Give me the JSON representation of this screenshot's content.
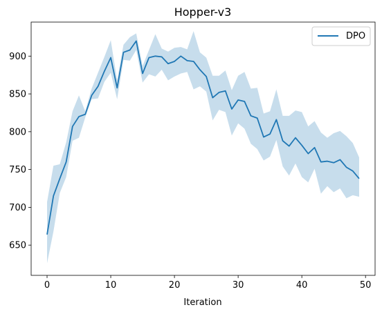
{
  "chart_data": {
    "type": "line",
    "title": "Hopper-v3",
    "xlabel": "Iteration",
    "ylabel": "",
    "xlim": [
      -2.5,
      51.5
    ],
    "ylim": [
      610,
      945
    ],
    "xticks": [
      0,
      10,
      20,
      30,
      40,
      50
    ],
    "yticks": [
      650,
      700,
      750,
      800,
      850,
      900
    ],
    "grid": false,
    "legend_position": "top-right",
    "colors": {
      "line": "#1f77b4",
      "band": "#1f77b4",
      "band_opacity": 0.25
    },
    "x": [
      0,
      1,
      2,
      3,
      4,
      5,
      6,
      7,
      8,
      9,
      10,
      11,
      12,
      13,
      14,
      15,
      16,
      17,
      18,
      19,
      20,
      21,
      22,
      23,
      24,
      25,
      26,
      27,
      28,
      29,
      30,
      31,
      32,
      33,
      34,
      35,
      36,
      37,
      38,
      39,
      40,
      41,
      42,
      43,
      44,
      45,
      46,
      47,
      48,
      49
    ],
    "series": [
      {
        "name": "DPO",
        "values": [
          664,
          715,
          738,
          760,
          807,
          820,
          823,
          848,
          860,
          880,
          898,
          858,
          905,
          908,
          920,
          877,
          898,
          900,
          899,
          890,
          893,
          900,
          894,
          893,
          882,
          873,
          845,
          852,
          854,
          830,
          842,
          840,
          821,
          818,
          793,
          797,
          816,
          788,
          781,
          792,
          782,
          771,
          779,
          760,
          761,
          759,
          763,
          753,
          748,
          738
        ],
        "lower": [
          626,
          668,
          719,
          740,
          788,
          792,
          819,
          843,
          844,
          866,
          878,
          843,
          895,
          894,
          908,
          865,
          876,
          873,
          882,
          868,
          873,
          877,
          879,
          856,
          860,
          853,
          815,
          829,
          826,
          795,
          811,
          804,
          784,
          777,
          762,
          767,
          789,
          754,
          742,
          758,
          740,
          733,
          751,
          718,
          728,
          720,
          725,
          712,
          716,
          714
        ],
        "upper": [
          707,
          755,
          757,
          786,
          827,
          848,
          827,
          857,
          878,
          899,
          921,
          868,
          915,
          925,
          930,
          887,
          908,
          929,
          910,
          906,
          911,
          912,
          909,
          933,
          905,
          898,
          874,
          874,
          881,
          855,
          874,
          879,
          857,
          858,
          824,
          827,
          856,
          821,
          821,
          828,
          826,
          807,
          814,
          799,
          792,
          798,
          801,
          794,
          785,
          766
        ]
      }
    ]
  }
}
